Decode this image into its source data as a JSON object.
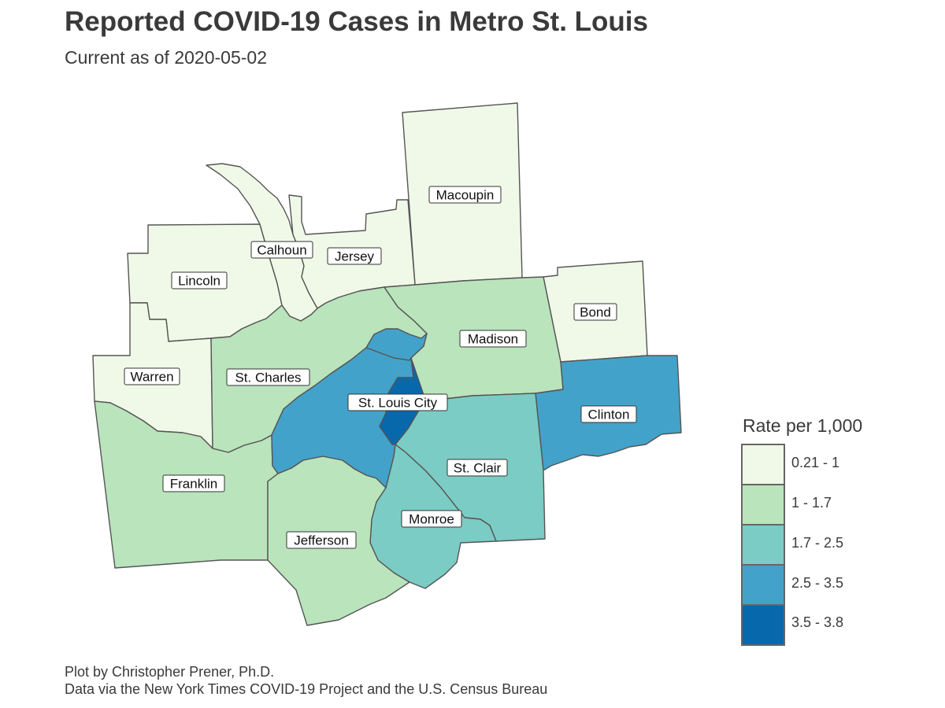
{
  "title": "Reported COVID-19 Cases in Metro St. Louis",
  "subtitle": "Current as of 2020-05-02",
  "caption": {
    "line1": "Plot by Christopher Prener, Ph.D.",
    "line2": "Data via the New York Times COVID-19 Project and the U.S. Census Bureau"
  },
  "legend": {
    "title": "Rate per 1,000",
    "classes": [
      {
        "label": "0.21 - 1",
        "color": "#f0f9e8"
      },
      {
        "label": "1 - 1.7",
        "color": "#bae4bc"
      },
      {
        "label": "1.7 - 2.5",
        "color": "#7bccc4"
      },
      {
        "label": "2.5 - 3.5",
        "color": "#43a2ca"
      },
      {
        "label": "3.5 - 3.8",
        "color": "#0868ac"
      }
    ]
  },
  "counties": [
    {
      "name": "Macoupin",
      "class": 0
    },
    {
      "name": "Calhoun",
      "class": 0
    },
    {
      "name": "Jersey",
      "class": 0
    },
    {
      "name": "Lincoln",
      "class": 0
    },
    {
      "name": "Bond",
      "class": 0
    },
    {
      "name": "Warren",
      "class": 0
    },
    {
      "name": "Madison",
      "class": 1
    },
    {
      "name": "St. Charles",
      "class": 1
    },
    {
      "name": "Franklin",
      "class": 1
    },
    {
      "name": "Jefferson",
      "class": 1
    },
    {
      "name": "St. Clair",
      "class": 2
    },
    {
      "name": "Monroe",
      "class": 2
    },
    {
      "name": "St. Louis",
      "class": 3
    },
    {
      "name": "Clinton",
      "class": 3
    },
    {
      "name": "St. Louis City",
      "class": 4
    }
  ]
}
